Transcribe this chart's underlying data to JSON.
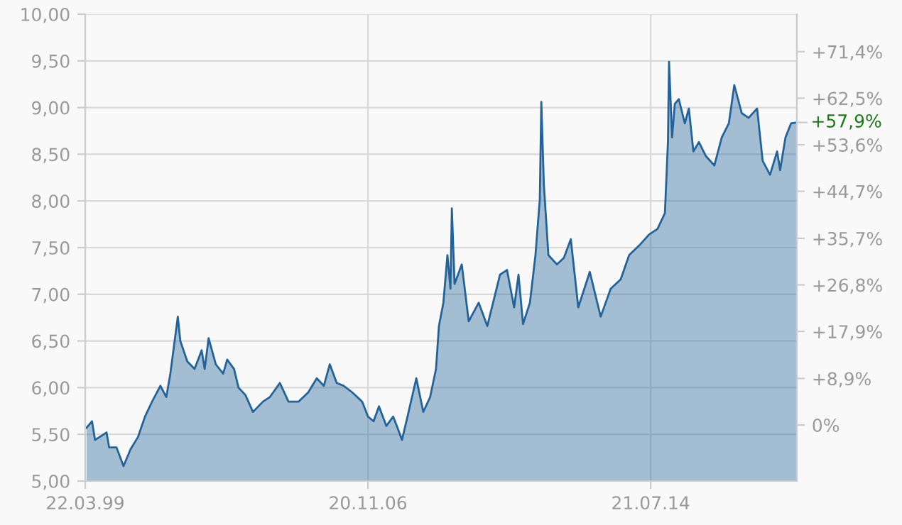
{
  "chart_data": {
    "type": "area",
    "x": [
      "1999-04-04",
      "1999-05-28",
      "1999-06-27",
      "1999-10-19",
      "1999-11-14",
      "2000-01-26",
      "2000-04-04",
      "2000-06-13",
      "2000-08-25",
      "2000-11-03",
      "2001-01-12",
      "2001-04-04",
      "2001-06-02",
      "2001-07-12",
      "2001-09-24",
      "2001-10-19",
      "2001-12-27",
      "2002-03-09",
      "2002-05-18",
      "2002-06-17",
      "2002-07-26",
      "2002-10-05",
      "2002-12-17",
      "2003-01-26",
      "2003-04-04",
      "2003-05-18",
      "2003-07-26",
      "2003-10-08",
      "2004-01-15",
      "2004-03-24",
      "2004-07-01",
      "2004-09-24",
      "2005-01-01",
      "2005-04-08",
      "2005-07-01",
      "2005-09-09",
      "2005-11-07",
      "2006-01-15",
      "2006-03-24",
      "2006-06-17",
      "2006-09-24",
      "2006-11-21",
      "2007-01-15",
      "2007-03-09",
      "2007-05-21",
      "2007-07-28",
      "2007-09-09",
      "2007-10-23",
      "2007-12-17",
      "2008-03-13",
      "2008-05-21",
      "2008-07-28",
      "2008-09-24",
      "2008-10-23",
      "2008-12-06",
      "2009-01-15",
      "2009-02-14",
      "2009-02-28",
      "2009-03-27",
      "2009-06-06",
      "2009-08-14",
      "2009-11-21",
      "2010-02-14",
      "2010-06-20",
      "2010-08-28",
      "2010-11-07",
      "2010-12-20",
      "2011-02-03",
      "2011-04-12",
      "2011-06-06",
      "2011-07-19",
      "2011-08-03",
      "2011-08-28",
      "2011-10-12",
      "2012-01-04",
      "2012-03-13",
      "2012-05-21",
      "2012-08-03",
      "2012-11-25",
      "2013-03-13",
      "2013-06-20",
      "2013-09-27",
      "2013-12-20",
      "2014-03-27",
      "2014-07-05",
      "2014-09-27",
      "2014-12-09",
      "2015-01-08",
      "2015-01-19",
      "2015-02-18",
      "2015-03-17",
      "2015-04-26",
      "2015-06-24",
      "2015-08-03",
      "2015-09-17",
      "2015-11-11",
      "2016-01-19",
      "2016-04-12",
      "2016-06-24",
      "2016-09-02",
      "2016-10-26",
      "2017-01-08",
      "2017-03-17",
      "2017-06-09",
      "2017-08-03",
      "2017-10-15",
      "2017-12-24",
      "2018-01-23",
      "2018-03-17",
      "2018-05-11",
      "2018-07-08"
    ],
    "series": [
      {
        "color": "#236399",
        "values": [
          5.57,
          5.64,
          5.44,
          5.52,
          5.36,
          5.36,
          5.16,
          5.34,
          5.47,
          5.69,
          5.85,
          6.02,
          5.9,
          6.15,
          6.76,
          6.5,
          6.28,
          6.2,
          6.4,
          6.2,
          6.53,
          6.25,
          6.15,
          6.3,
          6.2,
          6.0,
          5.92,
          5.74,
          5.85,
          5.9,
          6.05,
          5.85,
          5.85,
          5.95,
          6.1,
          6.02,
          6.25,
          6.05,
          6.02,
          5.95,
          5.85,
          5.69,
          5.64,
          5.8,
          5.59,
          5.69,
          5.57,
          5.44,
          5.69,
          6.1,
          5.74,
          5.9,
          6.2,
          6.66,
          6.91,
          7.42,
          7.06,
          7.92,
          7.11,
          7.32,
          6.71,
          6.91,
          6.66,
          7.21,
          7.26,
          6.86,
          7.21,
          6.68,
          6.91,
          7.42,
          8.02,
          9.06,
          8.18,
          7.42,
          7.32,
          7.39,
          7.59,
          6.86,
          7.24,
          6.76,
          7.06,
          7.16,
          7.42,
          7.52,
          7.64,
          7.7,
          7.87,
          8.63,
          9.49,
          8.68,
          9.04,
          9.09,
          8.83,
          8.99,
          8.53,
          8.63,
          8.48,
          8.38,
          8.68,
          8.83,
          9.24,
          8.94,
          8.89,
          8.99,
          8.43,
          8.28,
          8.53,
          8.33,
          8.68,
          8.83,
          8.84
        ]
      }
    ],
    "xlim": [
      "1999-03-22",
      "2018-07-08"
    ],
    "xticks": [
      {
        "value": "1999-03-22",
        "label": "22.03.99"
      },
      {
        "value": "2006-11-20",
        "label": "20.11.06"
      },
      {
        "value": "2014-07-21",
        "label": "21.07.14"
      }
    ],
    "ylim": [
      5.0,
      10.0
    ],
    "yticks": [
      {
        "value": 5.0,
        "label": "5,00"
      },
      {
        "value": 5.5,
        "label": "5,50"
      },
      {
        "value": 6.0,
        "label": "6,00"
      },
      {
        "value": 6.5,
        "label": "6,50"
      },
      {
        "value": 7.0,
        "label": "7,00"
      },
      {
        "value": 7.5,
        "label": "7,50"
      },
      {
        "value": 8.0,
        "label": "8,00"
      },
      {
        "value": 8.5,
        "label": "8,50"
      },
      {
        "value": 9.0,
        "label": "9,00"
      },
      {
        "value": 9.5,
        "label": "9,50"
      },
      {
        "value": 10.0,
        "label": "10,00"
      }
    ],
    "y2lim": [
      -10.71,
      78.57
    ],
    "y2ticks": [
      {
        "value": 0,
        "label": "0%"
      },
      {
        "value": 8.9,
        "label": "+8,9%"
      },
      {
        "value": 17.9,
        "label": "+17,9%"
      },
      {
        "value": 26.8,
        "label": "+26,8%"
      },
      {
        "value": 35.7,
        "label": "+35,7%"
      },
      {
        "value": 44.7,
        "label": "+44,7%"
      },
      {
        "value": 53.6,
        "label": "+53,6%"
      },
      {
        "value": 62.5,
        "label": "+62,5%"
      },
      {
        "value": 71.4,
        "label": "+71,4%"
      }
    ],
    "annotations": [
      {
        "text": "+57,9%",
        "x": "2018-07-08",
        "y": 8.84
      }
    ],
    "grid": true
  }
}
